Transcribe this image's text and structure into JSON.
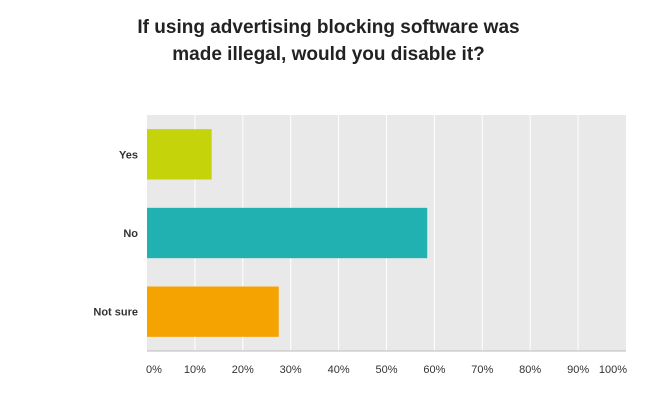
{
  "chart_data": {
    "type": "bar",
    "orientation": "horizontal",
    "title_lines": [
      "If using advertising blocking software was",
      "made illegal, would you disable it?"
    ],
    "categories": [
      "Yes",
      "No",
      "Not sure"
    ],
    "values": [
      13.5,
      58.5,
      27.5
    ],
    "colors": [
      "#c5d30b",
      "#22b1b1",
      "#f5a300"
    ],
    "xlim": [
      0,
      100
    ],
    "xticks": [
      "0%",
      "10%",
      "20%",
      "30%",
      "40%",
      "50%",
      "60%",
      "70%",
      "80%",
      "90%",
      "100%"
    ],
    "xlabel": "",
    "ylabel": "",
    "grid": true,
    "plot_background": "#e9e9e9",
    "grid_color": "#ffffff",
    "legend": "none"
  }
}
